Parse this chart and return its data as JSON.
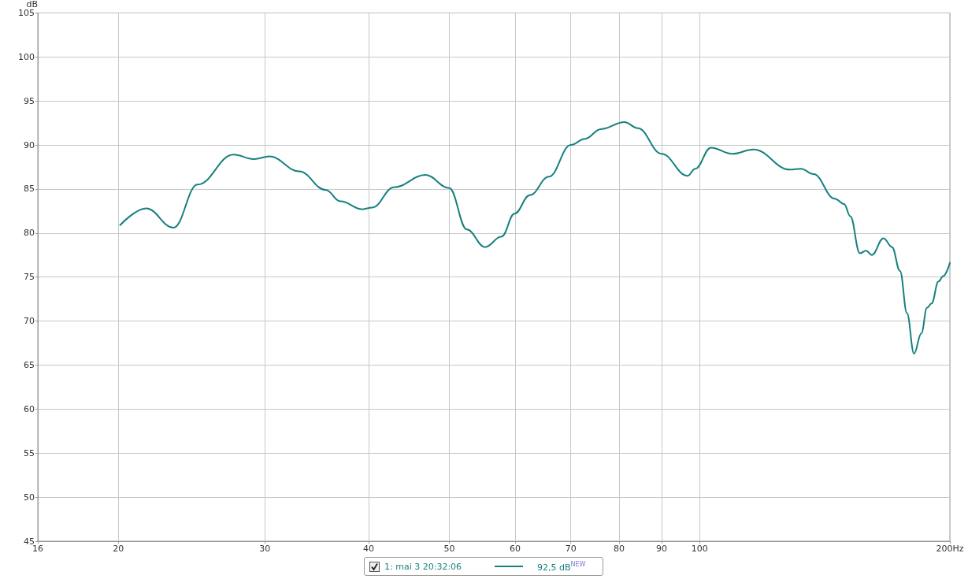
{
  "chart_data": {
    "type": "line",
    "ylabel": "dB",
    "x": [
      20.1,
      21.6,
      23.3,
      24.9,
      27.5,
      29.1,
      30.4,
      33.0,
      35.5,
      37.0,
      39.3,
      40.4,
      42.9,
      46.8,
      50.0,
      52.5,
      55.2,
      57.8,
      59.9,
      62.5,
      65.9,
      70.0,
      72.8,
      76.1,
      81.2,
      84.3,
      90.0,
      96.7,
      98.8,
      103.2,
      109.5,
      116.1,
      128.4,
      132.4,
      137.1,
      145.4,
      149.2,
      151.8,
      155.9,
      158.6,
      161.1,
      166.4,
      170.4,
      174.2,
      177.6,
      181.1,
      184.8,
      187.7,
      190.1,
      193.8,
      196.3,
      200.0
    ],
    "series": [
      {
        "name": "1: mai 3 20:32:06",
        "color": "#16807e",
        "values": [
          80.9,
          82.8,
          80.6,
          85.5,
          88.9,
          88.4,
          88.7,
          87.0,
          84.9,
          83.6,
          82.7,
          82.9,
          85.2,
          86.6,
          85.1,
          80.4,
          78.4,
          79.6,
          82.2,
          84.3,
          86.4,
          90.0,
          90.7,
          91.8,
          92.6,
          91.9,
          89.0,
          86.5,
          87.3,
          89.7,
          89.0,
          89.5,
          87.2,
          87.3,
          86.7,
          83.9,
          83.3,
          81.9,
          77.7,
          78.0,
          77.5,
          79.4,
          78.4,
          75.7,
          70.9,
          66.3,
          68.6,
          71.5,
          72.0,
          74.5,
          75.1,
          76.6
        ]
      }
    ],
    "annotations": [
      "92,5 dB$^{NEW}$"
    ],
    "log": "x",
    "xlim": [
      16,
      200
    ],
    "xticks": [
      16,
      20,
      30,
      40,
      50,
      60,
      70,
      80,
      90,
      100,
      {
        "value": 200,
        "label": "200Hz"
      }
    ],
    "ylim": [
      45,
      105
    ],
    "yticks": [
      45,
      50,
      55,
      60,
      65,
      70,
      75,
      80,
      85,
      90,
      95,
      100,
      105
    ],
    "grid": true,
    "legend": "bottom",
    "marker": "none",
    "line_style": "solid"
  }
}
